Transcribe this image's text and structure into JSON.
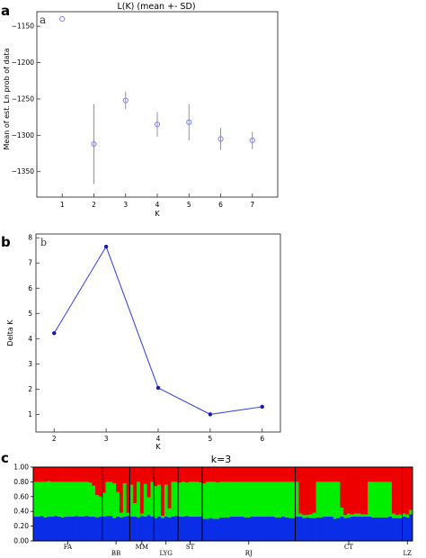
{
  "chart_data": [
    {
      "panel_label": "a",
      "inner_label": "a",
      "type": "scatter",
      "title": "L(K) (mean +- SD)",
      "xlabel": "K",
      "ylabel": "Mean of est. Ln prob of data",
      "xticks": [
        "1",
        "2",
        "3",
        "4",
        "5",
        "6",
        "7"
      ],
      "yticks": [
        "−1150",
        "−1200",
        "−1250",
        "−1300",
        "−1350"
      ],
      "xlim": [
        0.2,
        7.8
      ],
      "ylim": [
        -1385,
        -1130
      ],
      "series": [
        {
          "x": [
            1,
            2,
            3,
            4,
            5,
            6,
            7
          ],
          "values": [
            -1140,
            -1312,
            -1252,
            -1285,
            -1282,
            -1305,
            -1307
          ],
          "sd": [
            0,
            55,
            12,
            17,
            25,
            15,
            12
          ]
        }
      ],
      "marker": "open-circle",
      "color": "#8080ff"
    },
    {
      "panel_label": "b",
      "inner_label": "b",
      "type": "line",
      "xlabel": "K",
      "ylabel": "Delta K",
      "xticks": [
        "2",
        "3",
        "4",
        "5",
        "6"
      ],
      "yticks": [
        "1",
        "2",
        "3",
        "4",
        "5",
        "6",
        "7",
        "8"
      ],
      "xlim": [
        1.65,
        6.35
      ],
      "ylim": [
        0.3,
        8.15
      ],
      "series": [
        {
          "x": [
            2,
            3,
            4,
            5,
            6
          ],
          "values": [
            4.22,
            7.65,
            2.05,
            1.0,
            1.3
          ]
        }
      ],
      "color": "#3b4ee8"
    },
    {
      "panel_label": "c",
      "type": "bar",
      "stacked": true,
      "title": "k=3",
      "yticks": [
        "1.00",
        "0.80",
        "0.60",
        "0.40",
        "0.20",
        "0.00"
      ],
      "ylim": [
        0,
        1
      ],
      "cluster_colors": [
        "#0a2ee8",
        "#00ee00",
        "#ee0000"
      ],
      "populations": [
        {
          "label": "FA",
          "n": 20
        },
        {
          "label": "BB",
          "n": 8
        },
        {
          "label": "MM",
          "n": 7
        },
        {
          "label": "LYG",
          "n": 7
        },
        {
          "label": "ST",
          "n": 7
        },
        {
          "label": "RJ",
          "n": 27
        },
        {
          "label": "CT",
          "n": 31
        },
        {
          "label": "LZ",
          "n": 3
        }
      ],
      "individuals": {
        "blue": [
          0.33,
          0.33,
          0.34,
          0.32,
          0.33,
          0.33,
          0.34,
          0.33,
          0.32,
          0.33,
          0.33,
          0.33,
          0.34,
          0.33,
          0.33,
          0.34,
          0.33,
          0.33,
          0.32,
          0.33,
          0.33,
          0.34,
          0.34,
          0.31,
          0.33,
          0.32,
          0.33,
          0.34,
          0.33,
          0.33,
          0.32,
          0.34,
          0.33,
          0.35,
          0.33,
          0.31,
          0.33,
          0.31,
          0.33,
          0.32,
          0.33,
          0.34,
          0.33,
          0.33,
          0.34,
          0.33,
          0.33,
          0.33,
          0.33,
          0.3,
          0.3,
          0.31,
          0.3,
          0.3,
          0.32,
          0.32,
          0.32,
          0.33,
          0.33,
          0.33,
          0.33,
          0.32,
          0.32,
          0.33,
          0.33,
          0.33,
          0.33,
          0.33,
          0.33,
          0.33,
          0.32,
          0.32,
          0.33,
          0.32,
          0.31,
          0.31,
          0.33,
          0.33,
          0.31,
          0.32,
          0.31,
          0.31,
          0.32,
          0.32,
          0.33,
          0.33,
          0.33,
          0.3,
          0.31,
          0.33,
          0.31,
          0.32,
          0.33,
          0.33,
          0.33,
          0.33,
          0.33,
          0.33,
          0.32,
          0.32,
          0.32,
          0.32,
          0.32,
          0.33,
          0.31,
          0.31,
          0.31,
          0.33,
          0.32,
          0.36
        ],
        "green": [
          0.47,
          0.47,
          0.46,
          0.48,
          0.48,
          0.47,
          0.46,
          0.47,
          0.48,
          0.47,
          0.47,
          0.47,
          0.46,
          0.47,
          0.47,
          0.46,
          0.46,
          0.42,
          0.3,
          0.27,
          0.32,
          0.46,
          0.46,
          0.47,
          0.33,
          0.06,
          0.45,
          0.04,
          0.43,
          0.18,
          0.48,
          0.03,
          0.44,
          0.24,
          0.47,
          0.43,
          0.43,
          0.03,
          0.43,
          0.12,
          0.47,
          0.46,
          0.46,
          0.47,
          0.45,
          0.47,
          0.47,
          0.47,
          0.46,
          0.48,
          0.5,
          0.49,
          0.5,
          0.49,
          0.48,
          0.48,
          0.48,
          0.47,
          0.47,
          0.47,
          0.47,
          0.48,
          0.48,
          0.47,
          0.47,
          0.47,
          0.47,
          0.47,
          0.47,
          0.47,
          0.48,
          0.48,
          0.47,
          0.48,
          0.49,
          0.49,
          0.47,
          0.04,
          0.04,
          0.03,
          0.05,
          0.07,
          0.48,
          0.48,
          0.47,
          0.47,
          0.47,
          0.5,
          0.49,
          0.12,
          0.04,
          0.05,
          0.03,
          0.04,
          0.04,
          0.03,
          0.03,
          0.47,
          0.48,
          0.48,
          0.48,
          0.48,
          0.48,
          0.47,
          0.06,
          0.04,
          0.05,
          0.04,
          0.04,
          0.06
        ]
      }
    }
  ]
}
